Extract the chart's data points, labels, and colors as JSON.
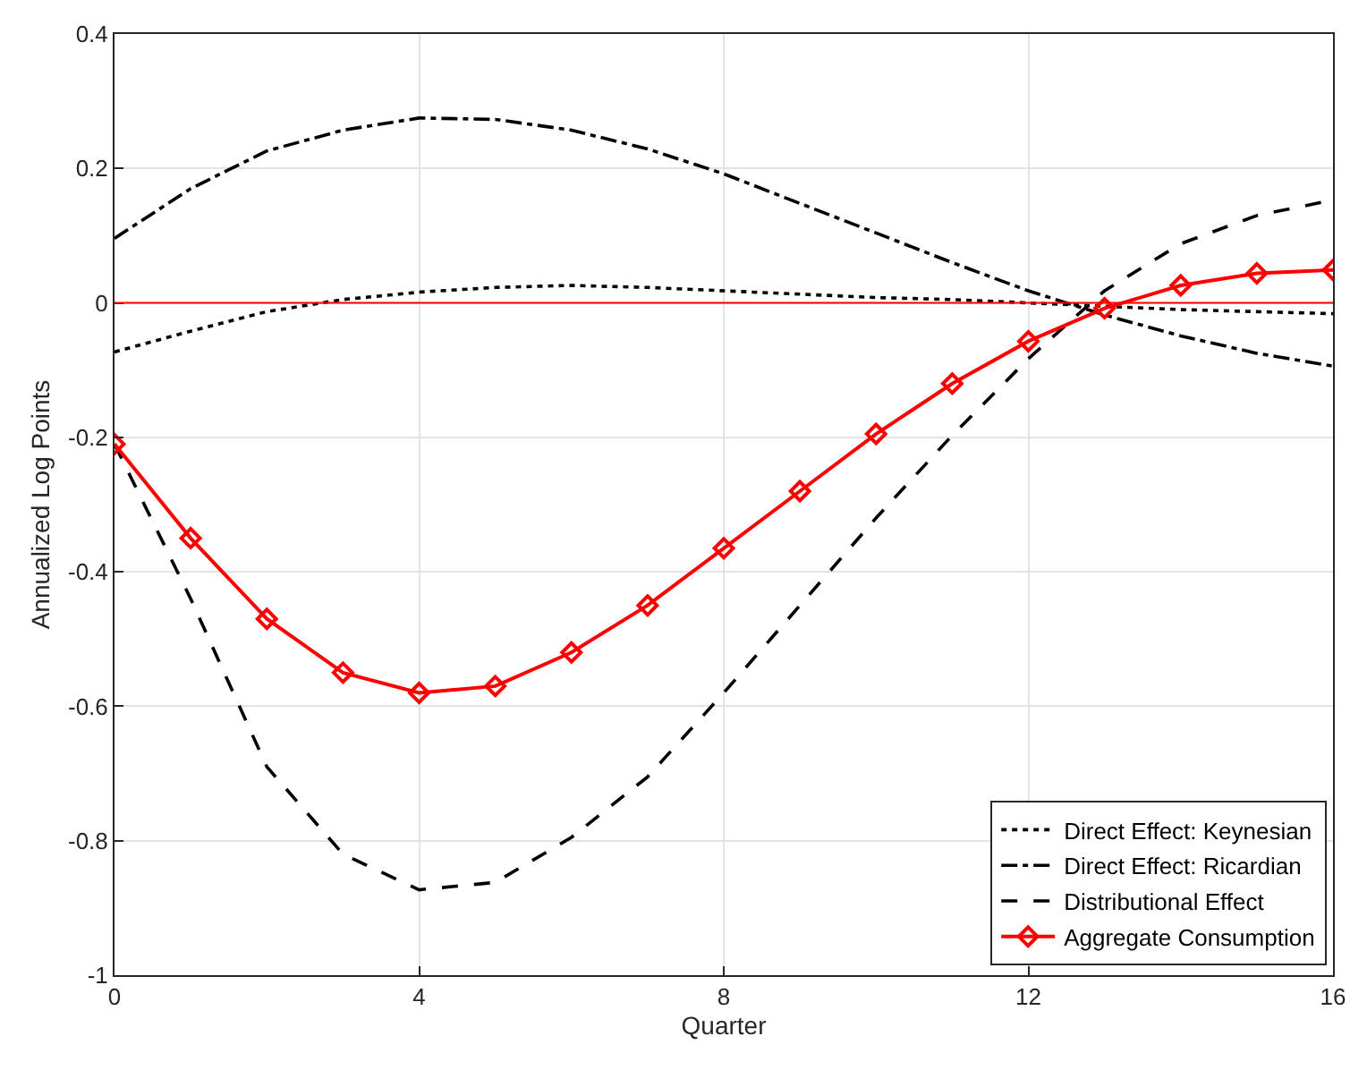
{
  "chart_data": {
    "type": "line",
    "xlabel": "Quarter",
    "ylabel": "Annualized Log Points",
    "x": [
      0,
      1,
      2,
      3,
      4,
      5,
      6,
      7,
      8,
      9,
      10,
      11,
      12,
      13,
      14,
      15,
      16
    ],
    "xlim": [
      0,
      16
    ],
    "xticks": [
      0,
      4,
      8,
      12,
      16
    ],
    "ylim": [
      -1,
      0.4
    ],
    "yticks": [
      -1,
      -0.8,
      -0.6,
      -0.4,
      -0.2,
      0,
      0.2,
      0.4
    ],
    "grid": true,
    "legend": "bottom right",
    "ref_lines": [
      {
        "axis": "y",
        "value": 0,
        "color": "#ff0000",
        "line_style": "solid"
      }
    ],
    "series": [
      {
        "name": "Direct Effect: Keynesian",
        "color": "#000000",
        "line_style": "dotted",
        "marker": "none",
        "values": [
          -0.073,
          -0.042,
          -0.013,
          0.005,
          0.016,
          0.023,
          0.026,
          0.023,
          0.018,
          0.013,
          0.008,
          0.005,
          0,
          -0.005,
          -0.01,
          -0.013,
          -0.016
        ]
      },
      {
        "name": "Direct Effect: Ricardian",
        "color": "#000000",
        "line_style": "dashdot",
        "marker": "none",
        "values": [
          0.096,
          0.17,
          0.226,
          0.257,
          0.275,
          0.273,
          0.257,
          0.229,
          0.192,
          0.148,
          0.104,
          0.06,
          0.018,
          -0.018,
          -0.049,
          -0.075,
          -0.094
        ]
      },
      {
        "name": "Distributional Effect",
        "color": "#000000",
        "line_style": "dashed",
        "marker": "none",
        "values": [
          -0.21,
          -0.44,
          -0.69,
          -0.82,
          -0.873,
          -0.862,
          -0.795,
          -0.705,
          -0.58,
          -0.45,
          -0.32,
          -0.197,
          -0.083,
          0.018,
          0.088,
          0.13,
          0.153
        ]
      },
      {
        "name": "Aggregate Consumption",
        "color": "#ff0000",
        "line_style": "solid",
        "marker": "diamond",
        "values": [
          -0.21,
          -0.35,
          -0.47,
          -0.55,
          -0.58,
          -0.57,
          -0.52,
          -0.45,
          -0.365,
          -0.28,
          -0.195,
          -0.12,
          -0.057,
          -0.008,
          0.026,
          0.044,
          0.049
        ]
      }
    ]
  }
}
